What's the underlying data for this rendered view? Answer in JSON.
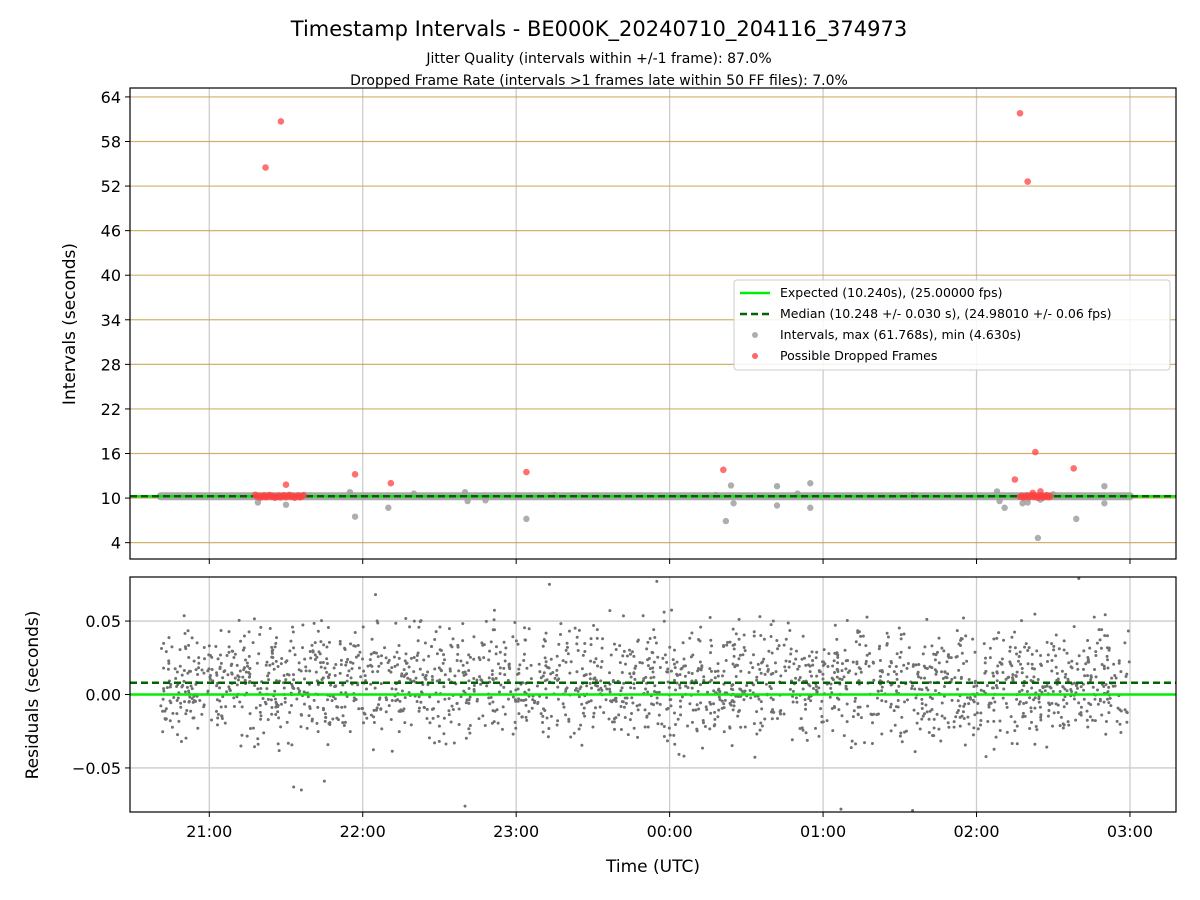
{
  "chart_data": [
    {
      "type": "scatter",
      "title": "Timestamp Intervals - BE000K_20240710_204116_374973",
      "subtitle_lines": [
        "Jitter Quality (intervals within +/-1 frame): 87.0%",
        "Dropped Frame Rate (intervals >1 frames late within 50 FF files): 7.0%"
      ],
      "xlabel": "",
      "ylabel": "Intervals (seconds)",
      "x_range": [
        "2024-07-10 20:29",
        "2024-07-11 03:18"
      ],
      "ylim": [
        1.8,
        65.2
      ],
      "y_ticks": [
        4,
        10,
        16,
        22,
        28,
        34,
        40,
        46,
        52,
        58,
        64
      ],
      "grid": true,
      "legend_position": "center-right",
      "legend": [
        "Expected (10.240s), (25.00000 fps)",
        "Median (10.248 +/- 0.030 s), (24.98010 +/- 0.06 fps)",
        "Intervals, max (61.768s), min (4.630s)",
        "Possible Dropped Frames"
      ],
      "expected_interval": 10.24,
      "median_interval": 10.248,
      "intervals_time_span": [
        "2024-07-10 20:41",
        "2024-07-11 03:00"
      ],
      "interval_outliers": [
        {
          "x": "2024-07-10 21:19",
          "y": 9.4
        },
        {
          "x": "2024-07-10 21:30",
          "y": 9.1
        },
        {
          "x": "2024-07-10 21:55",
          "y": 10.8
        },
        {
          "x": "2024-07-10 21:57",
          "y": 7.5
        },
        {
          "x": "2024-07-10 22:10",
          "y": 8.7
        },
        {
          "x": "2024-07-10 22:20",
          "y": 10.6
        },
        {
          "x": "2024-07-10 22:40",
          "y": 10.8
        },
        {
          "x": "2024-07-10 22:41",
          "y": 9.6
        },
        {
          "x": "2024-07-10 22:48",
          "y": 9.7
        },
        {
          "x": "2024-07-10 23:04",
          "y": 7.2
        },
        {
          "x": "2024-07-10 23:15",
          "y": 10.4
        },
        {
          "x": "2024-07-11 00:18",
          "y": 10.4
        },
        {
          "x": "2024-07-11 00:22",
          "y": 6.9
        },
        {
          "x": "2024-07-11 00:24",
          "y": 11.7
        },
        {
          "x": "2024-07-11 00:25",
          "y": 9.3
        },
        {
          "x": "2024-07-11 00:33",
          "y": 10.3
        },
        {
          "x": "2024-07-11 00:42",
          "y": 11.6
        },
        {
          "x": "2024-07-11 00:42",
          "y": 9.0
        },
        {
          "x": "2024-07-11 00:50",
          "y": 10.6
        },
        {
          "x": "2024-07-11 00:55",
          "y": 12.0
        },
        {
          "x": "2024-07-11 00:55",
          "y": 8.7
        },
        {
          "x": "2024-07-11 01:35",
          "y": 10.4
        },
        {
          "x": "2024-07-11 02:08",
          "y": 10.9
        },
        {
          "x": "2024-07-11 02:09",
          "y": 9.6
        },
        {
          "x": "2024-07-11 02:11",
          "y": 8.7
        },
        {
          "x": "2024-07-11 02:18",
          "y": 9.3
        },
        {
          "x": "2024-07-11 02:20",
          "y": 9.4
        },
        {
          "x": "2024-07-11 02:24",
          "y": 4.63
        },
        {
          "x": "2024-07-11 02:25",
          "y": 9.8
        },
        {
          "x": "2024-07-11 02:30",
          "y": 10.5
        },
        {
          "x": "2024-07-11 02:39",
          "y": 7.2
        },
        {
          "x": "2024-07-11 02:50",
          "y": 11.6
        },
        {
          "x": "2024-07-11 02:50",
          "y": 9.3
        }
      ],
      "dropped_frames": [
        {
          "x": "2024-07-10 21:22",
          "y": 54.5
        },
        {
          "x": "2024-07-10 21:28",
          "y": 60.7
        },
        {
          "x": "2024-07-10 21:30",
          "y": 11.8
        },
        {
          "x": "2024-07-10 21:57",
          "y": 13.2
        },
        {
          "x": "2024-07-10 22:11",
          "y": 12.0
        },
        {
          "x": "2024-07-10 23:04",
          "y": 13.5
        },
        {
          "x": "2024-07-11 00:21",
          "y": 13.8
        },
        {
          "x": "2024-07-11 02:15",
          "y": 12.5
        },
        {
          "x": "2024-07-11 02:17",
          "y": 61.8
        },
        {
          "x": "2024-07-11 02:20",
          "y": 52.6
        },
        {
          "x": "2024-07-11 02:23",
          "y": 16.2
        },
        {
          "x": "2024-07-11 02:38",
          "y": 14.0
        },
        {
          "x": "2024-07-11 02:25",
          "y": 10.9
        },
        {
          "x": "2024-07-11 02:22",
          "y": 10.7
        }
      ],
      "dropped_frame_clusters": [
        {
          "x_start": "2024-07-10 21:18",
          "x_end": "2024-07-10 21:37",
          "y": 10.3
        },
        {
          "x_start": "2024-07-11 02:17",
          "x_end": "2024-07-11 02:29",
          "y": 10.3
        }
      ],
      "colors": {
        "expected": "#00ee00",
        "median": "#006400",
        "intervals": "#a0a0a0",
        "dropped": "#ff4040",
        "gridline": "#c8a450"
      }
    },
    {
      "type": "scatter",
      "xlabel": "Time (UTC)",
      "ylabel": "Residuals (seconds)",
      "x_range": [
        "2024-07-10 20:29",
        "2024-07-11 03:18"
      ],
      "ylim": [
        -0.08,
        0.08
      ],
      "y_ticks": [
        -0.05,
        0.0,
        0.05
      ],
      "y_tick_labels": [
        "−0.05",
        "0.00",
        "0.05"
      ],
      "x_ticks": [
        "2024-07-10 21:00",
        "2024-07-10 22:00",
        "2024-07-10 23:00",
        "2024-07-11 00:00",
        "2024-07-11 01:00",
        "2024-07-11 02:00",
        "2024-07-11 03:00"
      ],
      "x_tick_labels": [
        "21:00",
        "22:00",
        "23:00",
        "00:00",
        "01:00",
        "02:00",
        "03:00"
      ],
      "grid": true,
      "expected_residual": 0.0,
      "median_residual": 0.008,
      "residual_spread": {
        "typical_range": [
          -0.05,
          0.065
        ],
        "time_span": [
          "2024-07-10 20:41",
          "2024-07-11 03:00"
        ]
      },
      "residual_points_sample": [
        {
          "x": "2024-07-10 21:33",
          "y": -0.063
        },
        {
          "x": "2024-07-10 21:36",
          "y": -0.065
        },
        {
          "x": "2024-07-10 21:45",
          "y": -0.059
        },
        {
          "x": "2024-07-10 22:40",
          "y": -0.076
        },
        {
          "x": "2024-07-11 01:07",
          "y": -0.078
        },
        {
          "x": "2024-07-11 01:35",
          "y": -0.079
        },
        {
          "x": "2024-07-10 23:13",
          "y": 0.075
        },
        {
          "x": "2024-07-10 23:55",
          "y": 0.077
        },
        {
          "x": "2024-07-11 02:40",
          "y": 0.079
        },
        {
          "x": "2024-07-10 22:05",
          "y": 0.068
        }
      ],
      "colors": {
        "expected": "#00ee00",
        "median": "#006400",
        "residuals": "#707070"
      }
    }
  ]
}
